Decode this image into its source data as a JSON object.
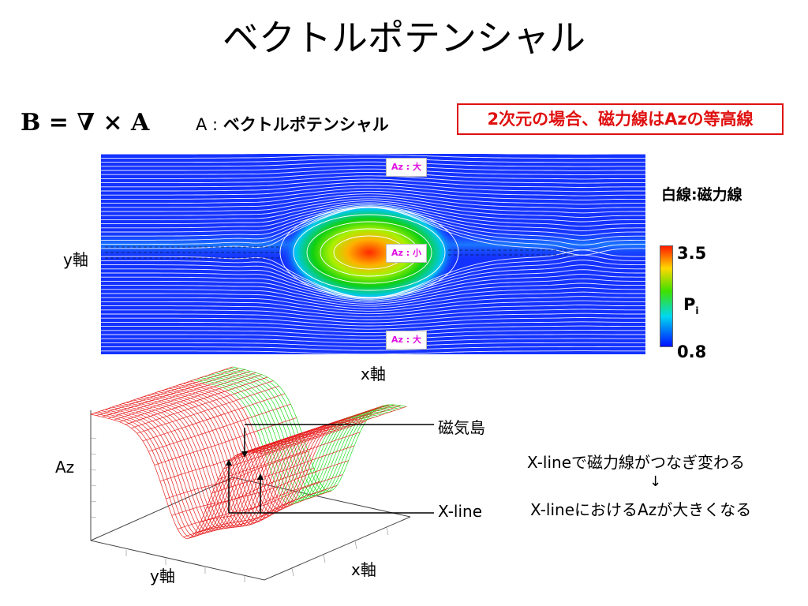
{
  "title": "ベクトルポテンシャル",
  "equation": "B = ∇ × A",
  "a_label": {
    "symbol": "A : ",
    "text": "ベクトルポテンシャル"
  },
  "note_box": "2次元の場合、磁力線はAzの等高線",
  "contour_plot": {
    "tag_top": "Az : 大",
    "tag_center": "Az : 小",
    "tag_bottom": "Az : 大",
    "y_axis_label": "y軸",
    "x_axis_label": "x軸",
    "white_line_label": "白線:磁力線",
    "colorbar": {
      "max": "3.5",
      "variable": "P",
      "subscript": "i",
      "min": "0.8",
      "colors": [
        "#ff1a00",
        "#ffd800",
        "#3ee000",
        "#00d8f0",
        "#0010ff"
      ]
    }
  },
  "surface_plot": {
    "z_axis_label": "Az",
    "y_axis_label": "y軸",
    "x_axis_label": "x軸",
    "island_label": "磁気島",
    "xline_label": "X-line",
    "colors": {
      "surface_high": "#e82020",
      "surface_low": "#20e020"
    }
  },
  "notes": {
    "line1": "X-lineで磁力線がつなぎ変わる",
    "arrow": "↓",
    "line2": "X-lineにおけるAzが大きくなる"
  }
}
